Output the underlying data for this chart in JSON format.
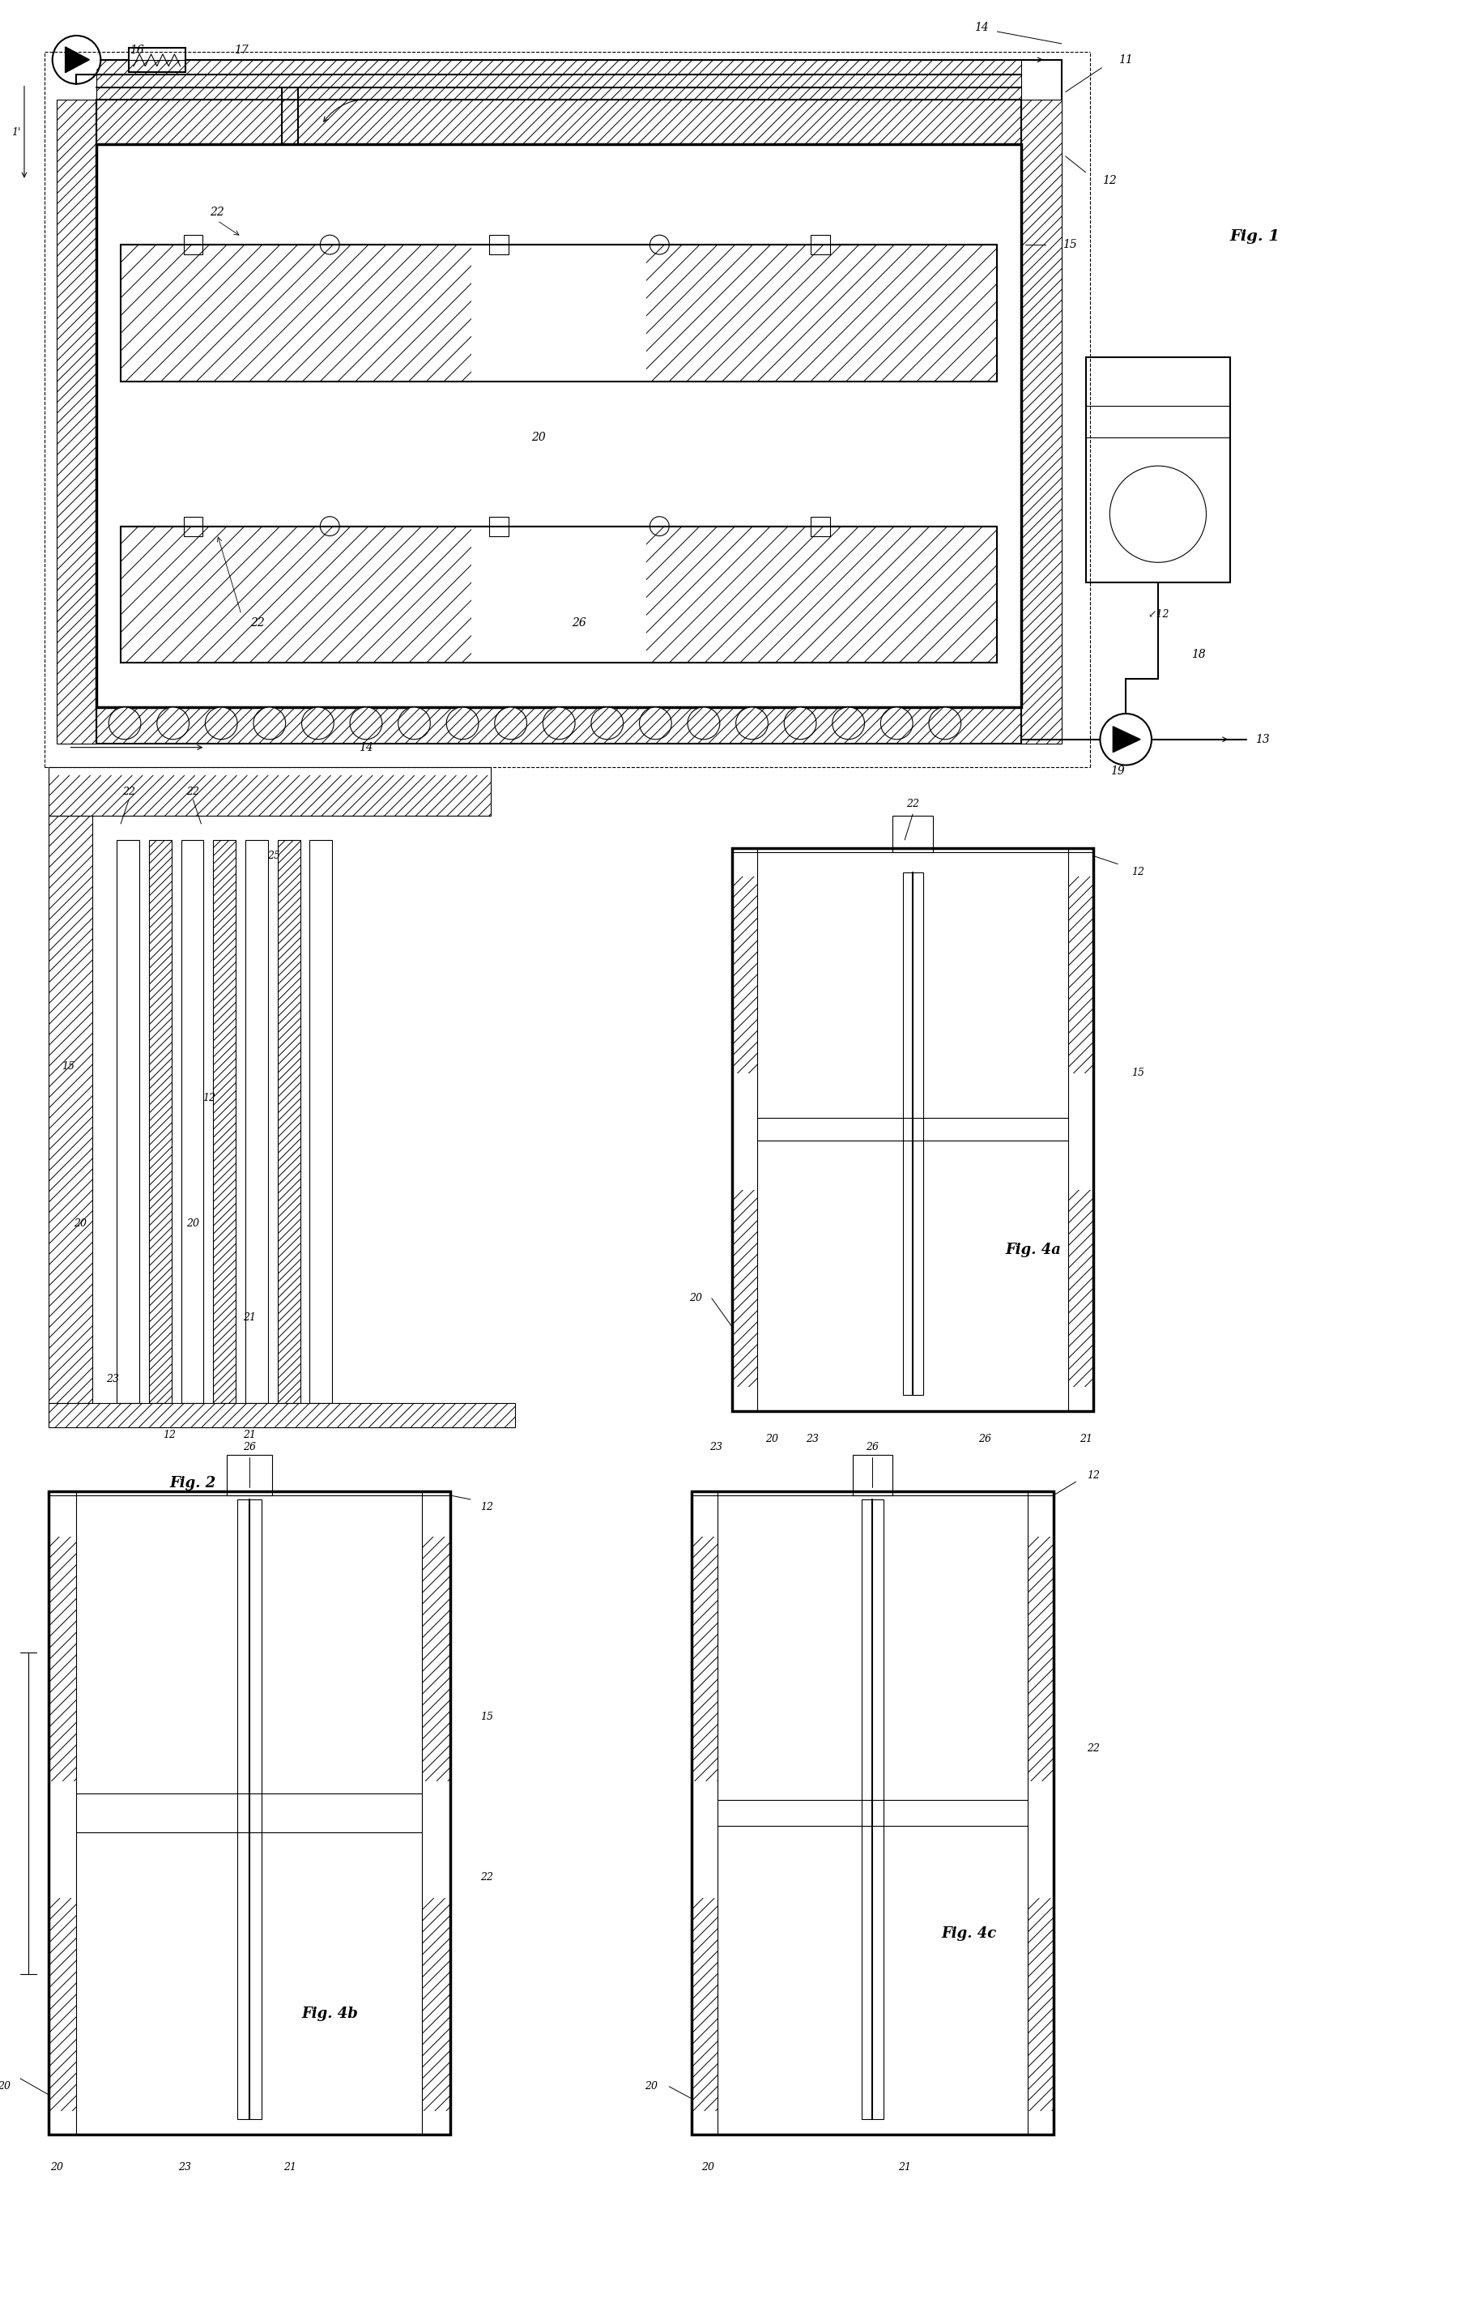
{
  "fig_width": 18.09,
  "fig_height": 28.64,
  "bg_color": "#ffffff",
  "line_color": "#000000",
  "lw_thin": 0.8,
  "lw_med": 1.5,
  "lw_thick": 2.5,
  "fig1_label": "Fig. 1",
  "fig2_label": "Fig. 2",
  "fig4a_label": "Fig. 4a",
  "fig4b_label": "Fig. 4b",
  "fig4c_label": "Fig. 4c"
}
